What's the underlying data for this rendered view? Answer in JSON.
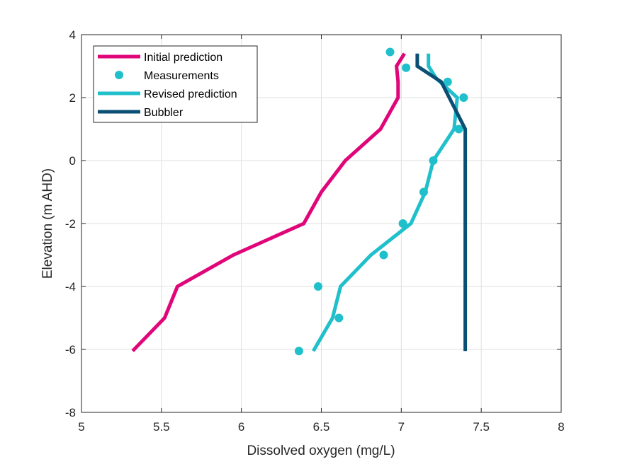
{
  "chart_data": {
    "type": "line",
    "title": "",
    "xlabel": "Dissolved oxygen (mg/L)",
    "ylabel": "Elevation (m AHD)",
    "xlim": [
      5,
      8
    ],
    "ylim": [
      -8,
      4
    ],
    "xticks": [
      "5",
      "5.5",
      "6",
      "6.5",
      "7",
      "7.5",
      "8"
    ],
    "yticks": [
      "4",
      "2",
      "0",
      "-2",
      "-4",
      "-6",
      "-8"
    ],
    "grid": true,
    "legend_position": "top-left",
    "series": [
      {
        "name": "Initial prediction",
        "style": "line",
        "color": "#E0067A",
        "points": [
          [
            7.02,
            3.4
          ],
          [
            6.97,
            3.0
          ],
          [
            6.98,
            2.5
          ],
          [
            6.98,
            2.0
          ],
          [
            6.87,
            1.0
          ],
          [
            6.65,
            0.0
          ],
          [
            6.5,
            -1.0
          ],
          [
            6.39,
            -2.0
          ],
          [
            5.95,
            -3.0
          ],
          [
            5.6,
            -4.0
          ],
          [
            5.52,
            -5.0
          ],
          [
            5.32,
            -6.05
          ]
        ]
      },
      {
        "name": "Measurements",
        "style": "marker",
        "color": "#1FBFCB",
        "points": [
          [
            6.93,
            3.45
          ],
          [
            7.03,
            2.95
          ],
          [
            7.29,
            2.5
          ],
          [
            7.39,
            2.0
          ],
          [
            7.36,
            1.0
          ],
          [
            7.2,
            0.0
          ],
          [
            7.14,
            -1.0
          ],
          [
            7.01,
            -2.0
          ],
          [
            6.89,
            -3.0
          ],
          [
            6.48,
            -4.0
          ],
          [
            6.61,
            -5.0
          ],
          [
            6.36,
            -6.05
          ]
        ]
      },
      {
        "name": "Revised prediction",
        "style": "line",
        "color": "#1FBFCB",
        "points": [
          [
            7.17,
            3.4
          ],
          [
            7.17,
            3.0
          ],
          [
            7.22,
            2.6
          ],
          [
            7.35,
            2.0
          ],
          [
            7.33,
            1.0
          ],
          [
            7.2,
            0.0
          ],
          [
            7.15,
            -1.0
          ],
          [
            7.06,
            -2.0
          ],
          [
            6.81,
            -3.0
          ],
          [
            6.62,
            -4.0
          ],
          [
            6.57,
            -5.0
          ],
          [
            6.45,
            -6.05
          ]
        ]
      },
      {
        "name": "Bubbler",
        "style": "line",
        "color": "#0B4F74",
        "points": [
          [
            7.1,
            3.4
          ],
          [
            7.1,
            3.0
          ],
          [
            7.25,
            2.5
          ],
          [
            7.4,
            1.0
          ],
          [
            7.4,
            -6.05
          ]
        ]
      }
    ]
  }
}
